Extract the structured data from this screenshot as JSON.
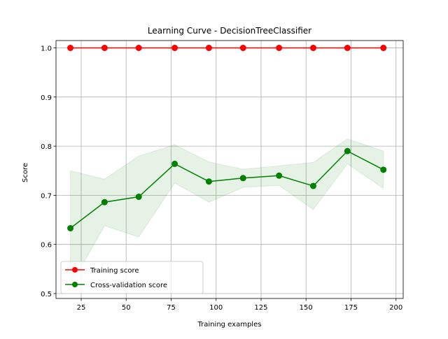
{
  "chart_data": {
    "type": "line",
    "title": "Learning Curve - DecisionTreeClassifier",
    "xlabel": "Training examples",
    "ylabel": "Score",
    "xlim": [
      11,
      204
    ],
    "ylim": [
      0.49,
      1.015
    ],
    "xticks": [
      25,
      50,
      75,
      100,
      125,
      150,
      175,
      200
    ],
    "yticks": [
      0.5,
      0.6,
      0.7,
      0.8,
      0.9,
      1.0
    ],
    "grid": true,
    "legend": "lower-left",
    "x": [
      19,
      38,
      57,
      77,
      96,
      115,
      135,
      154,
      173,
      193
    ],
    "series": [
      {
        "name": "Training score",
        "color": "#ff0000",
        "values": [
          1.0,
          1.0,
          1.0,
          1.0,
          1.0,
          1.0,
          1.0,
          1.0,
          1.0,
          1.0
        ],
        "band_low": [
          1.0,
          1.0,
          1.0,
          1.0,
          1.0,
          1.0,
          1.0,
          1.0,
          1.0,
          1.0
        ],
        "band_high": [
          1.0,
          1.0,
          1.0,
          1.0,
          1.0,
          1.0,
          1.0,
          1.0,
          1.0,
          1.0
        ]
      },
      {
        "name": "Cross-validation score",
        "color": "#008000",
        "values": [
          0.633,
          0.686,
          0.697,
          0.764,
          0.728,
          0.735,
          0.74,
          0.719,
          0.79,
          0.752
        ],
        "band_low": [
          0.515,
          0.638,
          0.615,
          0.725,
          0.686,
          0.716,
          0.72,
          0.671,
          0.764,
          0.714
        ],
        "band_high": [
          0.75,
          0.733,
          0.78,
          0.803,
          0.768,
          0.753,
          0.76,
          0.767,
          0.815,
          0.79
        ]
      }
    ]
  }
}
